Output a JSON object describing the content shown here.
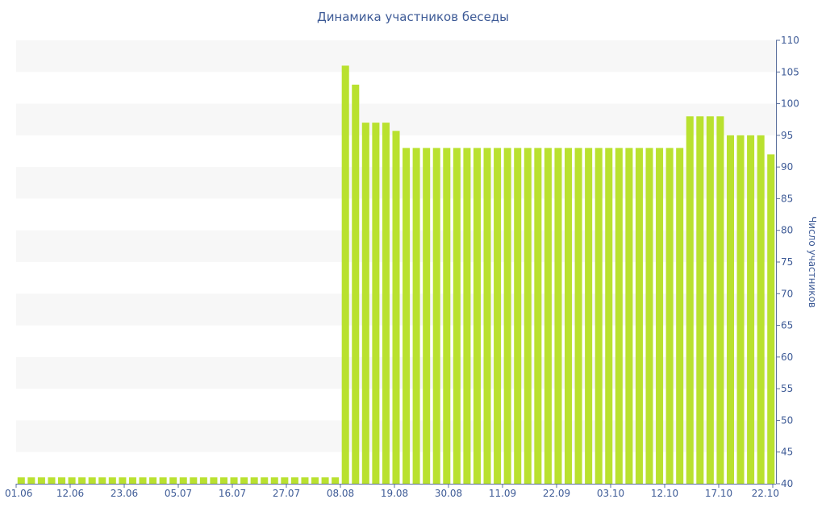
{
  "chart_data": {
    "type": "bar",
    "title": "Динамика участников беседы",
    "xlabel": "",
    "ylabel": "Число участников",
    "ylim": [
      40,
      110
    ],
    "yticks": [
      40,
      45,
      50,
      55,
      60,
      65,
      70,
      75,
      80,
      85,
      90,
      95,
      100,
      105,
      110
    ],
    "ytick_labels": [
      "40",
      "45",
      "50",
      "55",
      "60",
      "65",
      "70",
      "75",
      "80",
      "85",
      "90",
      "95",
      "100",
      "105",
      "110"
    ],
    "y_axis_side": "right",
    "x_tick_labels": [
      "01.06",
      "12.06",
      "23.06",
      "05.07",
      "16.07",
      "27.07",
      "08.08",
      "19.08",
      "30.08",
      "11.09",
      "22.09",
      "03.10",
      "12.10",
      "17.10",
      "22.10"
    ],
    "values": [
      41,
      41,
      41,
      41,
      41,
      41,
      41,
      41,
      41,
      41,
      41,
      41,
      41,
      41,
      41,
      41,
      41,
      41,
      41,
      41,
      41,
      41,
      41,
      41,
      41,
      41,
      41,
      41,
      41,
      41,
      41,
      41,
      106,
      103,
      97,
      97,
      97,
      95.7,
      93,
      93,
      93,
      93,
      93,
      93,
      93,
      93,
      93,
      93,
      93,
      93,
      93,
      93,
      93,
      93,
      93,
      93,
      93,
      93,
      93,
      93,
      93,
      93,
      93,
      93,
      93,
      93,
      98,
      98,
      98,
      98,
      95,
      95,
      95,
      95,
      92
    ],
    "grid": "alternating horizontal bands",
    "colors": {
      "bar": "#b9e12f",
      "band": "#f7f7f7",
      "text": "#3d5a96",
      "axis": "#5a6f9c"
    }
  }
}
